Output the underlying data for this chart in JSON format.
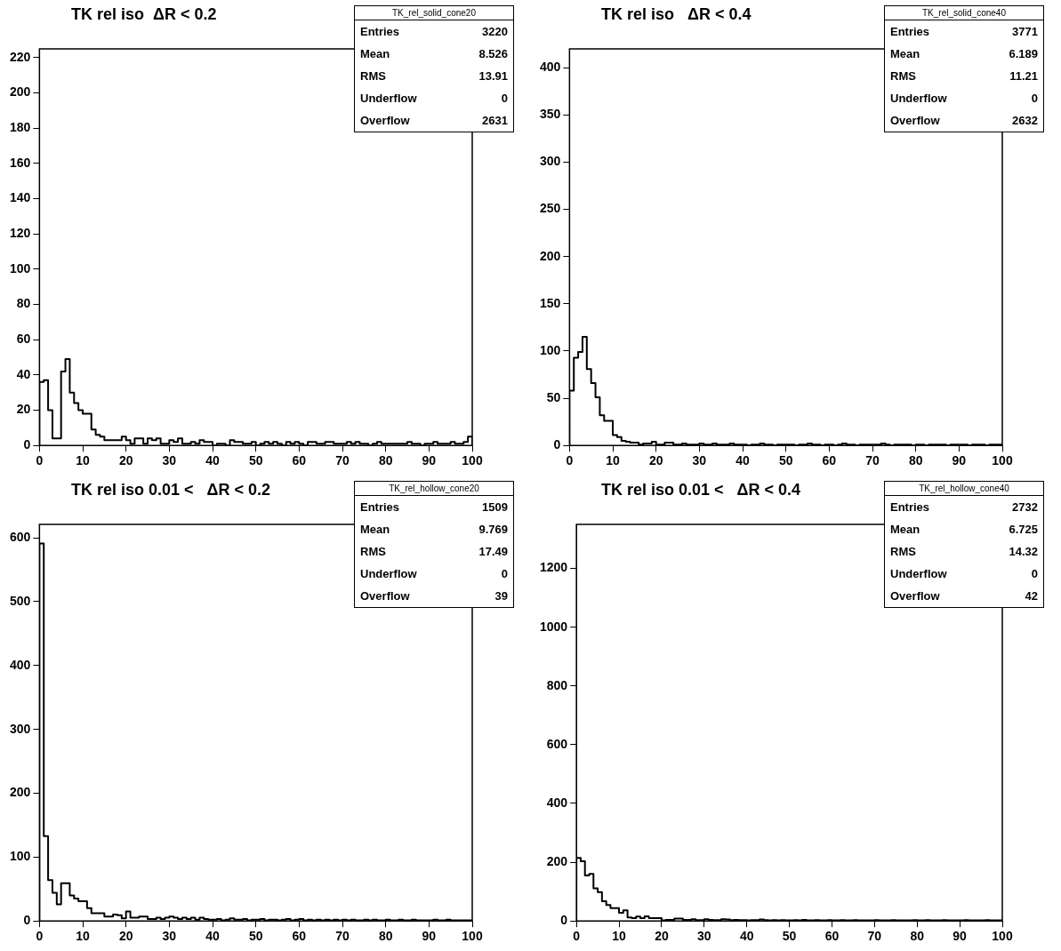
{
  "chart_data": [
    {
      "type": "histogram",
      "title": "TK rel iso  ΔR < 0.2",
      "annotations": [
        "TK_rel_solid_cone20",
        "Entries",
        "3220",
        "Mean",
        "8.526",
        "RMS",
        "13.91",
        "Underflow",
        "0",
        "Overflow",
        "2631"
      ],
      "color": "#000000",
      "grid": false,
      "legend": false,
      "xlim": [
        0,
        100
      ],
      "xticks": [
        0,
        10,
        20,
        30,
        40,
        50,
        60,
        70,
        80,
        90,
        100
      ],
      "ylim": [
        0,
        225
      ],
      "yticks": [
        0,
        20,
        40,
        60,
        80,
        100,
        120,
        140,
        160,
        180,
        200,
        220
      ],
      "bins": [
        0,
        1,
        2,
        3,
        4,
        5,
        6,
        7,
        8,
        9,
        10,
        11,
        12,
        13,
        14,
        15,
        16,
        17,
        18,
        19,
        20,
        21,
        22,
        23,
        24,
        25,
        26,
        27,
        28,
        29,
        30,
        31,
        32,
        33,
        34,
        35,
        36,
        37,
        38,
        39,
        40,
        41,
        42,
        43,
        44,
        45,
        46,
        47,
        48,
        49,
        50,
        51,
        52,
        53,
        54,
        55,
        56,
        57,
        58,
        59,
        60,
        61,
        62,
        63,
        64,
        65,
        66,
        67,
        68,
        69,
        70,
        71,
        72,
        73,
        74,
        75,
        76,
        77,
        78,
        79,
        80,
        81,
        82,
        83,
        84,
        85,
        86,
        87,
        88,
        89,
        90,
        91,
        92,
        93,
        94,
        95,
        96,
        97,
        98,
        99,
        100
      ],
      "values": [
        36,
        37,
        20,
        4,
        4,
        42,
        49,
        30,
        24,
        20,
        18,
        18,
        9,
        6,
        5,
        3,
        3,
        3,
        3,
        5,
        3,
        1,
        4,
        4,
        1,
        4,
        3,
        4,
        1,
        1,
        3,
        2,
        4,
        1,
        1,
        2,
        1,
        3,
        2,
        2,
        0,
        1,
        1,
        0,
        3,
        2,
        2,
        1,
        1,
        2,
        0,
        1,
        2,
        1,
        2,
        1,
        0,
        2,
        1,
        2,
        1,
        0,
        2,
        2,
        1,
        1,
        2,
        2,
        1,
        1,
        1,
        2,
        1,
        2,
        1,
        1,
        0,
        1,
        2,
        1,
        1,
        1,
        1,
        1,
        1,
        2,
        1,
        1,
        0,
        1,
        1,
        2,
        1,
        1,
        1,
        2,
        1,
        1,
        2,
        5
      ]
    },
    {
      "type": "histogram",
      "title": "TK rel iso   ΔR < 0.4",
      "annotations": [
        "TK_rel_solid_cone40",
        "Entries",
        "3771",
        "Mean",
        "6.189",
        "RMS",
        "11.21",
        "Underflow",
        "0",
        "Overflow",
        "2632"
      ],
      "color": "#000000",
      "grid": false,
      "legend": false,
      "xlim": [
        0,
        100
      ],
      "xticks": [
        0,
        10,
        20,
        30,
        40,
        50,
        60,
        70,
        80,
        90,
        100
      ],
      "ylim": [
        0,
        420
      ],
      "yticks": [
        0,
        50,
        100,
        150,
        200,
        250,
        300,
        350,
        400
      ],
      "bins": [
        0,
        1,
        2,
        3,
        4,
        5,
        6,
        7,
        8,
        9,
        10,
        11,
        12,
        13,
        14,
        15,
        16,
        17,
        18,
        19,
        20,
        21,
        22,
        23,
        24,
        25,
        26,
        27,
        28,
        29,
        30,
        31,
        32,
        33,
        34,
        35,
        36,
        37,
        38,
        39,
        40,
        41,
        42,
        43,
        44,
        45,
        46,
        47,
        48,
        49,
        50,
        51,
        52,
        53,
        54,
        55,
        56,
        57,
        58,
        59,
        60,
        61,
        62,
        63,
        64,
        65,
        66,
        67,
        68,
        69,
        70,
        71,
        72,
        73,
        74,
        75,
        76,
        77,
        78,
        79,
        80,
        81,
        82,
        83,
        84,
        85,
        86,
        87,
        88,
        89,
        90,
        91,
        92,
        93,
        94,
        95,
        96,
        97,
        98,
        99,
        100
      ],
      "values": [
        58,
        93,
        99,
        115,
        81,
        66,
        51,
        32,
        26,
        26,
        11,
        9,
        5,
        4,
        3,
        3,
        1,
        2,
        2,
        4,
        1,
        1,
        3,
        3,
        1,
        1,
        2,
        1,
        1,
        1,
        2,
        1,
        1,
        2,
        1,
        1,
        1,
        2,
        1,
        1,
        1,
        0,
        1,
        1,
        2,
        1,
        1,
        0,
        1,
        1,
        1,
        1,
        0,
        1,
        1,
        2,
        1,
        1,
        0,
        1,
        1,
        0,
        1,
        2,
        1,
        1,
        0,
        1,
        1,
        1,
        1,
        1,
        2,
        1,
        0,
        1,
        1,
        1,
        1,
        0,
        1,
        1,
        0,
        1,
        1,
        1,
        1,
        0,
        1,
        1,
        1,
        1,
        0,
        1,
        1,
        1,
        0,
        1,
        1,
        1
      ]
    },
    {
      "type": "histogram",
      "title": "TK rel iso 0.01 <   ΔR < 0.2",
      "annotations": [
        "TK_rel_hollow_cone20",
        "Entries",
        "1509",
        "Mean",
        "9.769",
        "RMS",
        "17.49",
        "Underflow",
        "0",
        "Overflow",
        "39"
      ],
      "color": "#000000",
      "grid": false,
      "legend": false,
      "xlim": [
        0,
        100
      ],
      "xticks": [
        0,
        10,
        20,
        30,
        40,
        50,
        60,
        70,
        80,
        90,
        100
      ],
      "ylim": [
        0,
        621
      ],
      "yticks": [
        0,
        100,
        200,
        300,
        400,
        500,
        600
      ],
      "bins": [
        0,
        1,
        2,
        3,
        4,
        5,
        6,
        7,
        8,
        9,
        10,
        11,
        12,
        13,
        14,
        15,
        16,
        17,
        18,
        19,
        20,
        21,
        22,
        23,
        24,
        25,
        26,
        27,
        28,
        29,
        30,
        31,
        32,
        33,
        34,
        35,
        36,
        37,
        38,
        39,
        40,
        41,
        42,
        43,
        44,
        45,
        46,
        47,
        48,
        49,
        50,
        51,
        52,
        53,
        54,
        55,
        56,
        57,
        58,
        59,
        60,
        61,
        62,
        63,
        64,
        65,
        66,
        67,
        68,
        69,
        70,
        71,
        72,
        73,
        74,
        75,
        76,
        77,
        78,
        79,
        80,
        81,
        82,
        83,
        84,
        85,
        86,
        87,
        88,
        89,
        90,
        91,
        92,
        93,
        94,
        95,
        96,
        97,
        98,
        99,
        100
      ],
      "values": [
        591,
        133,
        64,
        44,
        26,
        59,
        59,
        40,
        35,
        31,
        31,
        20,
        12,
        12,
        12,
        7,
        7,
        10,
        9,
        4,
        15,
        5,
        5,
        7,
        7,
        3,
        3,
        5,
        3,
        5,
        7,
        5,
        3,
        5,
        3,
        5,
        2,
        5,
        3,
        2,
        2,
        3,
        1,
        2,
        4,
        2,
        2,
        3,
        1,
        2,
        2,
        3,
        1,
        2,
        2,
        1,
        2,
        3,
        1,
        2,
        3,
        1,
        2,
        1,
        2,
        1,
        2,
        1,
        2,
        1,
        2,
        1,
        2,
        1,
        1,
        2,
        1,
        2,
        1,
        1,
        2,
        1,
        1,
        2,
        1,
        1,
        2,
        1,
        1,
        1,
        1,
        2,
        1,
        1,
        2,
        1,
        1,
        1,
        1,
        1
      ]
    },
    {
      "type": "histogram",
      "title": "TK rel iso 0.01 <   ΔR < 0.4",
      "annotations": [
        "TK_rel_hollow_cone40",
        "Entries",
        "2732",
        "Mean",
        "6.725",
        "RMS",
        "14.32",
        "Underflow",
        "0",
        "Overflow",
        "42"
      ],
      "color": "#000000",
      "grid": false,
      "legend": false,
      "xlim": [
        0,
        100
      ],
      "xticks": [
        0,
        10,
        20,
        30,
        40,
        50,
        60,
        70,
        80,
        90,
        100
      ],
      "ylim": [
        0,
        1350
      ],
      "yticks": [
        0,
        200,
        400,
        600,
        800,
        1000,
        1200
      ],
      "bins": [
        0,
        1,
        2,
        3,
        4,
        5,
        6,
        7,
        8,
        9,
        10,
        11,
        12,
        13,
        14,
        15,
        16,
        17,
        18,
        19,
        20,
        21,
        22,
        23,
        24,
        25,
        26,
        27,
        28,
        29,
        30,
        31,
        32,
        33,
        34,
        35,
        36,
        37,
        38,
        39,
        40,
        41,
        42,
        43,
        44,
        45,
        46,
        47,
        48,
        49,
        50,
        51,
        52,
        53,
        54,
        55,
        56,
        57,
        58,
        59,
        60,
        61,
        62,
        63,
        64,
        65,
        66,
        67,
        68,
        69,
        70,
        71,
        72,
        73,
        74,
        75,
        76,
        77,
        78,
        79,
        80,
        81,
        82,
        83,
        84,
        85,
        86,
        87,
        88,
        89,
        90,
        91,
        92,
        93,
        94,
        95,
        96,
        97,
        98,
        99,
        100
      ],
      "values": [
        215,
        203,
        155,
        160,
        111,
        98,
        67,
        54,
        44,
        44,
        28,
        36,
        12,
        10,
        15,
        10,
        16,
        10,
        10,
        10,
        2,
        4,
        4,
        8,
        8,
        4,
        4,
        6,
        3,
        3,
        6,
        4,
        3,
        3,
        6,
        5,
        3,
        4,
        3,
        3,
        2,
        3,
        3,
        5,
        3,
        2,
        3,
        2,
        3,
        2,
        2,
        3,
        2,
        4,
        2,
        2,
        3,
        2,
        2,
        3,
        2,
        2,
        3,
        2,
        2,
        3,
        2,
        2,
        2,
        2,
        3,
        2,
        2,
        2,
        3,
        2,
        2,
        2,
        2,
        3,
        2,
        2,
        3,
        2,
        2,
        2,
        3,
        2,
        2,
        2,
        2,
        3,
        2,
        2,
        2,
        2,
        3,
        2,
        2,
        2
      ]
    }
  ]
}
